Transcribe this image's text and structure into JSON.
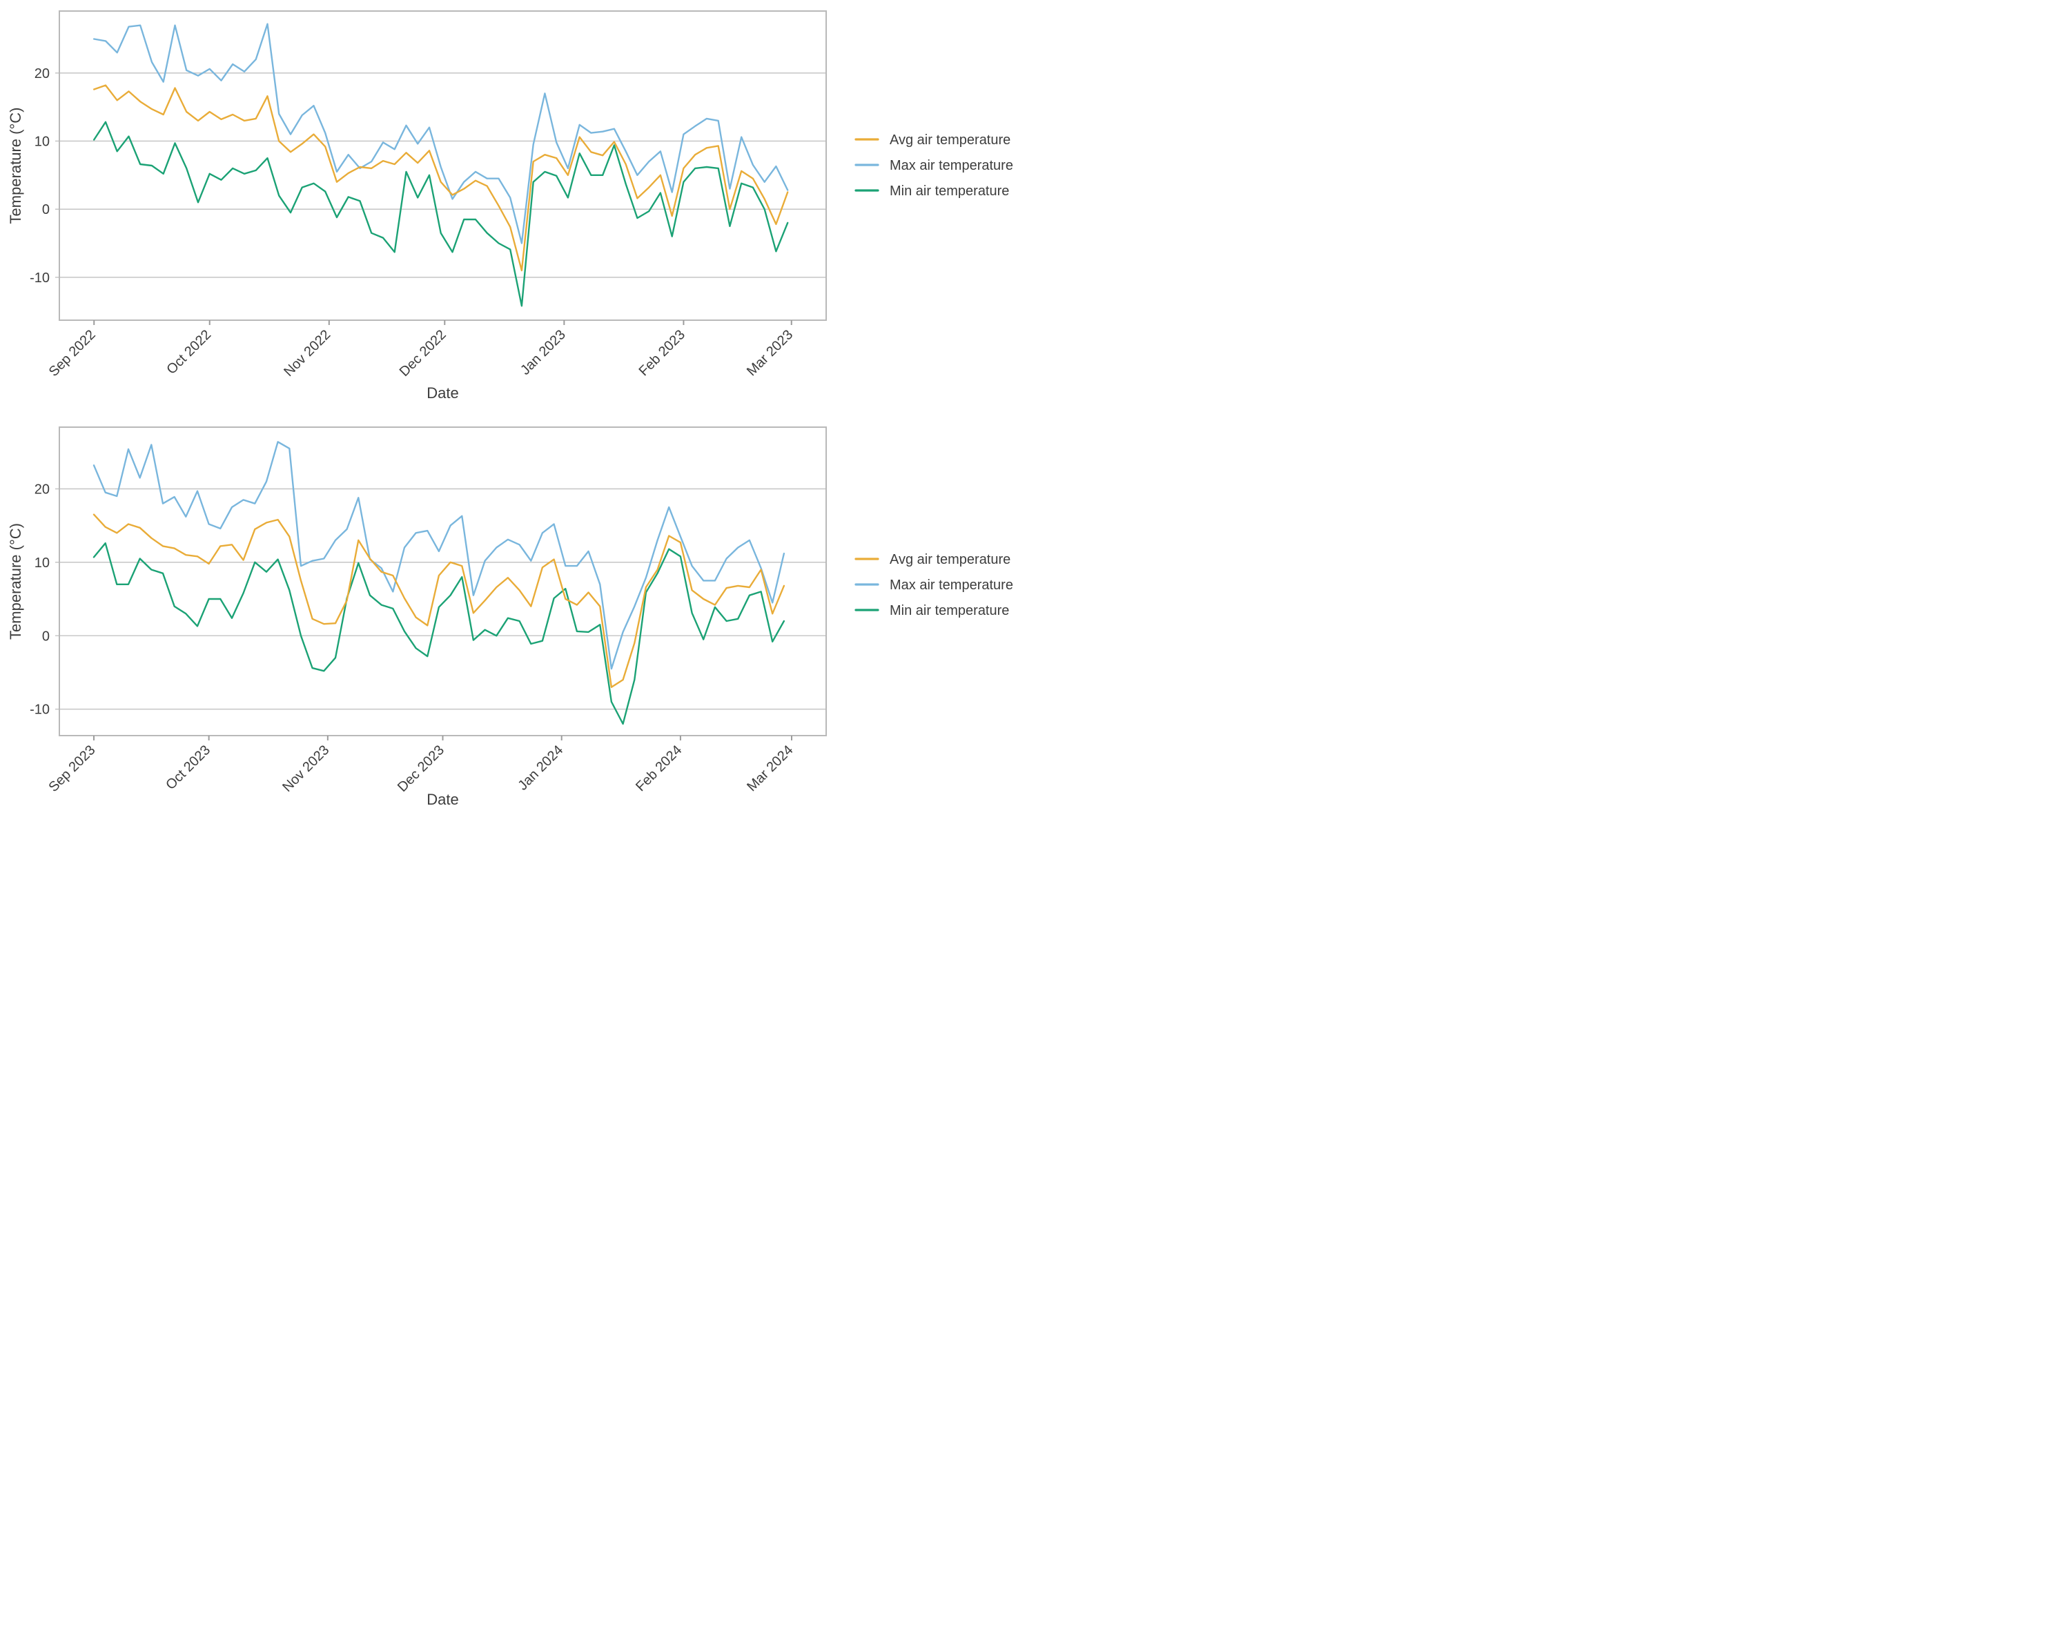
{
  "page": {
    "background": "#ffffff",
    "text_color": "#3d3d3d"
  },
  "colors": {
    "avg": "#e9ac38",
    "max": "#79b6dd",
    "min": "#1ba275",
    "grid": "#c9c9c9",
    "border": "#b9b9b9",
    "tick": "#9c9c9c",
    "text": "#3d3d3d"
  },
  "legend": {
    "items": [
      {
        "series": "avg",
        "label": "Avg air temperature"
      },
      {
        "series": "max",
        "label": "Max air temperature"
      },
      {
        "series": "min",
        "label": "Min air temperature"
      }
    ]
  },
  "chart_data": [
    {
      "type": "line",
      "title": "",
      "xlabel": "Date",
      "ylabel": "Temperature (°C)",
      "x_tick_labels": [
        "Sep 2022",
        "Oct 2022",
        "Nov 2022",
        "Dec 2022",
        "Jan 2023",
        "Feb 2023",
        "Mar 2023"
      ],
      "x_tick_days": [
        0,
        30,
        61,
        91,
        122,
        153,
        181
      ],
      "xlim_days": [
        -9,
        190
      ],
      "yticks": [
        -10,
        0,
        10,
        20
      ],
      "ytick_labels": [
        "-10",
        "0",
        "10",
        "20"
      ],
      "ylim": [
        -16.3,
        29.1
      ],
      "grid": "horizontal-only",
      "legend_position": "right",
      "sample_start_day": 0,
      "sample_step_days": 3,
      "series": [
        {
          "name": "Avg air temperature",
          "color_key": "avg",
          "values": [
            17.6,
            18.2,
            16.0,
            17.3,
            15.8,
            14.7,
            13.9,
            17.8,
            14.3,
            13.0,
            14.3,
            13.2,
            13.9,
            13.0,
            13.3,
            16.6,
            10.0,
            8.4,
            9.6,
            11.0,
            9.2,
            4.0,
            5.3,
            6.2,
            6.0,
            7.1,
            6.6,
            8.3,
            6.8,
            8.6,
            4.0,
            2.1,
            3.0,
            4.2,
            3.4,
            0.5,
            -2.6,
            -9.0,
            7.0,
            8.0,
            7.5,
            5.0,
            10.6,
            8.4,
            7.9,
            9.9,
            6.6,
            1.6,
            3.2,
            5.0,
            -1.0,
            6.0,
            8.0,
            9.0,
            9.3,
            0.0,
            5.6,
            4.5,
            1.5,
            -2.2,
            2.5
          ]
        },
        {
          "name": "Max air temperature",
          "color_key": "max",
          "values": [
            25.0,
            24.7,
            23.0,
            26.8,
            27.0,
            21.6,
            18.7,
            27.0,
            20.4,
            19.6,
            20.6,
            18.9,
            21.3,
            20.2,
            22.0,
            27.2,
            14.0,
            11.0,
            13.8,
            15.2,
            11.2,
            5.5,
            8.0,
            6.0,
            7.0,
            9.8,
            8.8,
            12.3,
            9.6,
            12.0,
            6.2,
            1.5,
            4.0,
            5.5,
            4.5,
            4.5,
            1.7,
            -5.0,
            9.5,
            17.0,
            9.8,
            6.0,
            12.4,
            11.2,
            11.4,
            11.8,
            8.5,
            5.0,
            7.0,
            8.5,
            2.5,
            11.0,
            12.2,
            13.3,
            13.0,
            3.0,
            10.6,
            6.5,
            4.0,
            6.3,
            2.8
          ]
        },
        {
          "name": "Min air temperature",
          "color_key": "min",
          "values": [
            10.2,
            12.8,
            8.5,
            10.7,
            6.6,
            6.4,
            5.2,
            9.7,
            6.0,
            1.0,
            5.2,
            4.3,
            6.0,
            5.2,
            5.7,
            7.5,
            2.0,
            -0.5,
            3.2,
            3.8,
            2.6,
            -1.2,
            1.8,
            1.2,
            -3.5,
            -4.2,
            -6.3,
            5.5,
            1.7,
            5.0,
            -3.5,
            -6.3,
            -1.5,
            -1.5,
            -3.5,
            -5.0,
            -5.9,
            -14.2,
            4.0,
            5.5,
            4.9,
            1.7,
            8.2,
            5.0,
            5.0,
            9.4,
            3.7,
            -1.3,
            -0.3,
            2.4,
            -4.0,
            4.0,
            6.0,
            6.2,
            6.0,
            -2.5,
            3.8,
            3.2,
            0.0,
            -6.2,
            -2.0
          ]
        }
      ]
    },
    {
      "type": "line",
      "title": "",
      "xlabel": "Date",
      "ylabel": "Temperature (°C)",
      "x_tick_labels": [
        "Sep 2023",
        "Oct 2023",
        "Nov 2023",
        "Dec 2023",
        "Jan 2024",
        "Feb 2024",
        "Mar 2024"
      ],
      "x_tick_days": [
        0,
        30,
        61,
        91,
        122,
        153,
        182
      ],
      "xlim_days": [
        -9,
        191
      ],
      "yticks": [
        -10,
        0,
        10,
        20
      ],
      "ytick_labels": [
        "-10",
        "0",
        "10",
        "20"
      ],
      "ylim": [
        -13.6,
        28.4
      ],
      "grid": "horizontal-only",
      "legend_position": "right",
      "sample_start_day": 0,
      "sample_step_days": 3,
      "series": [
        {
          "name": "Avg air temperature",
          "color_key": "avg",
          "values": [
            16.5,
            14.8,
            14.0,
            15.2,
            14.7,
            13.3,
            12.2,
            11.9,
            11.0,
            10.8,
            9.8,
            12.2,
            12.4,
            10.3,
            14.5,
            15.4,
            15.8,
            13.5,
            7.5,
            2.3,
            1.6,
            1.7,
            4.8,
            13.0,
            10.5,
            8.7,
            8.2,
            5.1,
            2.5,
            1.4,
            8.2,
            10.0,
            9.5,
            3.1,
            4.8,
            6.6,
            7.9,
            6.2,
            4.0,
            9.3,
            10.4,
            5.0,
            4.2,
            5.9,
            4.0,
            -7.0,
            -6.0,
            -1.0,
            6.6,
            9.0,
            13.6,
            12.7,
            6.2,
            5.0,
            4.2,
            6.5,
            6.8,
            6.6,
            9.0,
            3.0,
            6.8
          ]
        },
        {
          "name": "Max air temperature",
          "color_key": "max",
          "values": [
            23.2,
            19.5,
            19.0,
            25.4,
            21.5,
            26.0,
            18.0,
            18.9,
            16.2,
            19.7,
            15.2,
            14.6,
            17.5,
            18.5,
            18.0,
            21.0,
            26.4,
            25.5,
            9.5,
            10.2,
            10.5,
            13.0,
            14.5,
            18.8,
            10.4,
            9.2,
            6.0,
            12.0,
            14.0,
            14.3,
            11.5,
            15.0,
            16.3,
            5.5,
            10.2,
            12.0,
            13.1,
            12.4,
            10.2,
            14.0,
            15.2,
            9.5,
            9.5,
            11.5,
            7.0,
            -4.5,
            0.5,
            4.0,
            7.9,
            13.0,
            17.5,
            13.5,
            9.5,
            7.5,
            7.5,
            10.5,
            12.0,
            13.0,
            9.2,
            4.5,
            11.2
          ]
        },
        {
          "name": "Min air temperature",
          "color_key": "min",
          "values": [
            10.7,
            12.6,
            7.0,
            7.0,
            10.5,
            9.0,
            8.5,
            4.0,
            3.0,
            1.3,
            5.0,
            5.0,
            2.4,
            5.8,
            10.0,
            8.7,
            10.4,
            6.2,
            0.0,
            -4.4,
            -4.8,
            -3.0,
            5.1,
            9.9,
            5.5,
            4.2,
            3.7,
            0.6,
            -1.7,
            -2.8,
            3.9,
            5.5,
            8.0,
            -0.6,
            0.8,
            0.0,
            2.4,
            2.0,
            -1.1,
            -0.7,
            5.1,
            6.4,
            0.6,
            0.5,
            1.5,
            -9.0,
            -12.0,
            -6.0,
            5.9,
            8.5,
            11.8,
            10.8,
            3.1,
            -0.5,
            3.9,
            2.0,
            2.3,
            5.5,
            6.0,
            -0.8,
            2.0
          ]
        }
      ]
    }
  ]
}
